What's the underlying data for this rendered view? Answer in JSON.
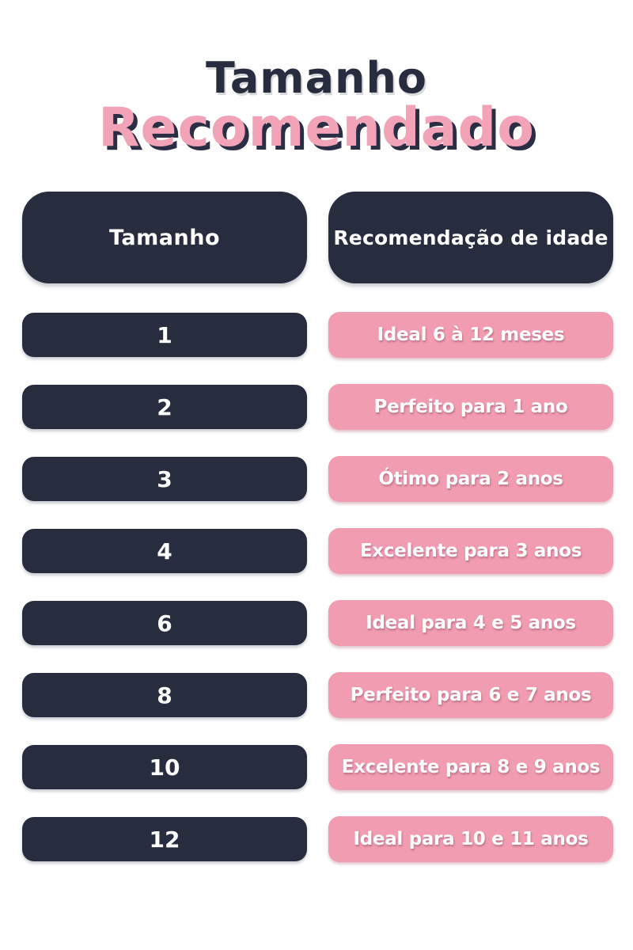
{
  "title": {
    "primary": "Tamanho",
    "accent": "Recomendado"
  },
  "table": {
    "headers": {
      "size": "Tamanho",
      "age": "Recomendação de idade"
    },
    "rows": [
      {
        "size": "1",
        "recommendation": "Ideal 6 à 12 meses"
      },
      {
        "size": "2",
        "recommendation": "Perfeito para 1 ano"
      },
      {
        "size": "3",
        "recommendation": "Ótimo para 2 anos"
      },
      {
        "size": "4",
        "recommendation": "Excelente para 3 anos"
      },
      {
        "size": "6",
        "recommendation": "Ideal para 4 e 5 anos"
      },
      {
        "size": "8",
        "recommendation": "Perfeito para 6 e 7 anos"
      },
      {
        "size": "10",
        "recommendation": "Excelente para 8 e 9 anos"
      },
      {
        "size": "12",
        "recommendation": "Ideal para 10 e 11 anos"
      }
    ]
  },
  "colors": {
    "navy": "#272C3F",
    "pill_pink": "#F19CB1",
    "title_pink": "#F2A3B8",
    "text_white": "#FFFFFF",
    "background": "#FFFFFF"
  }
}
